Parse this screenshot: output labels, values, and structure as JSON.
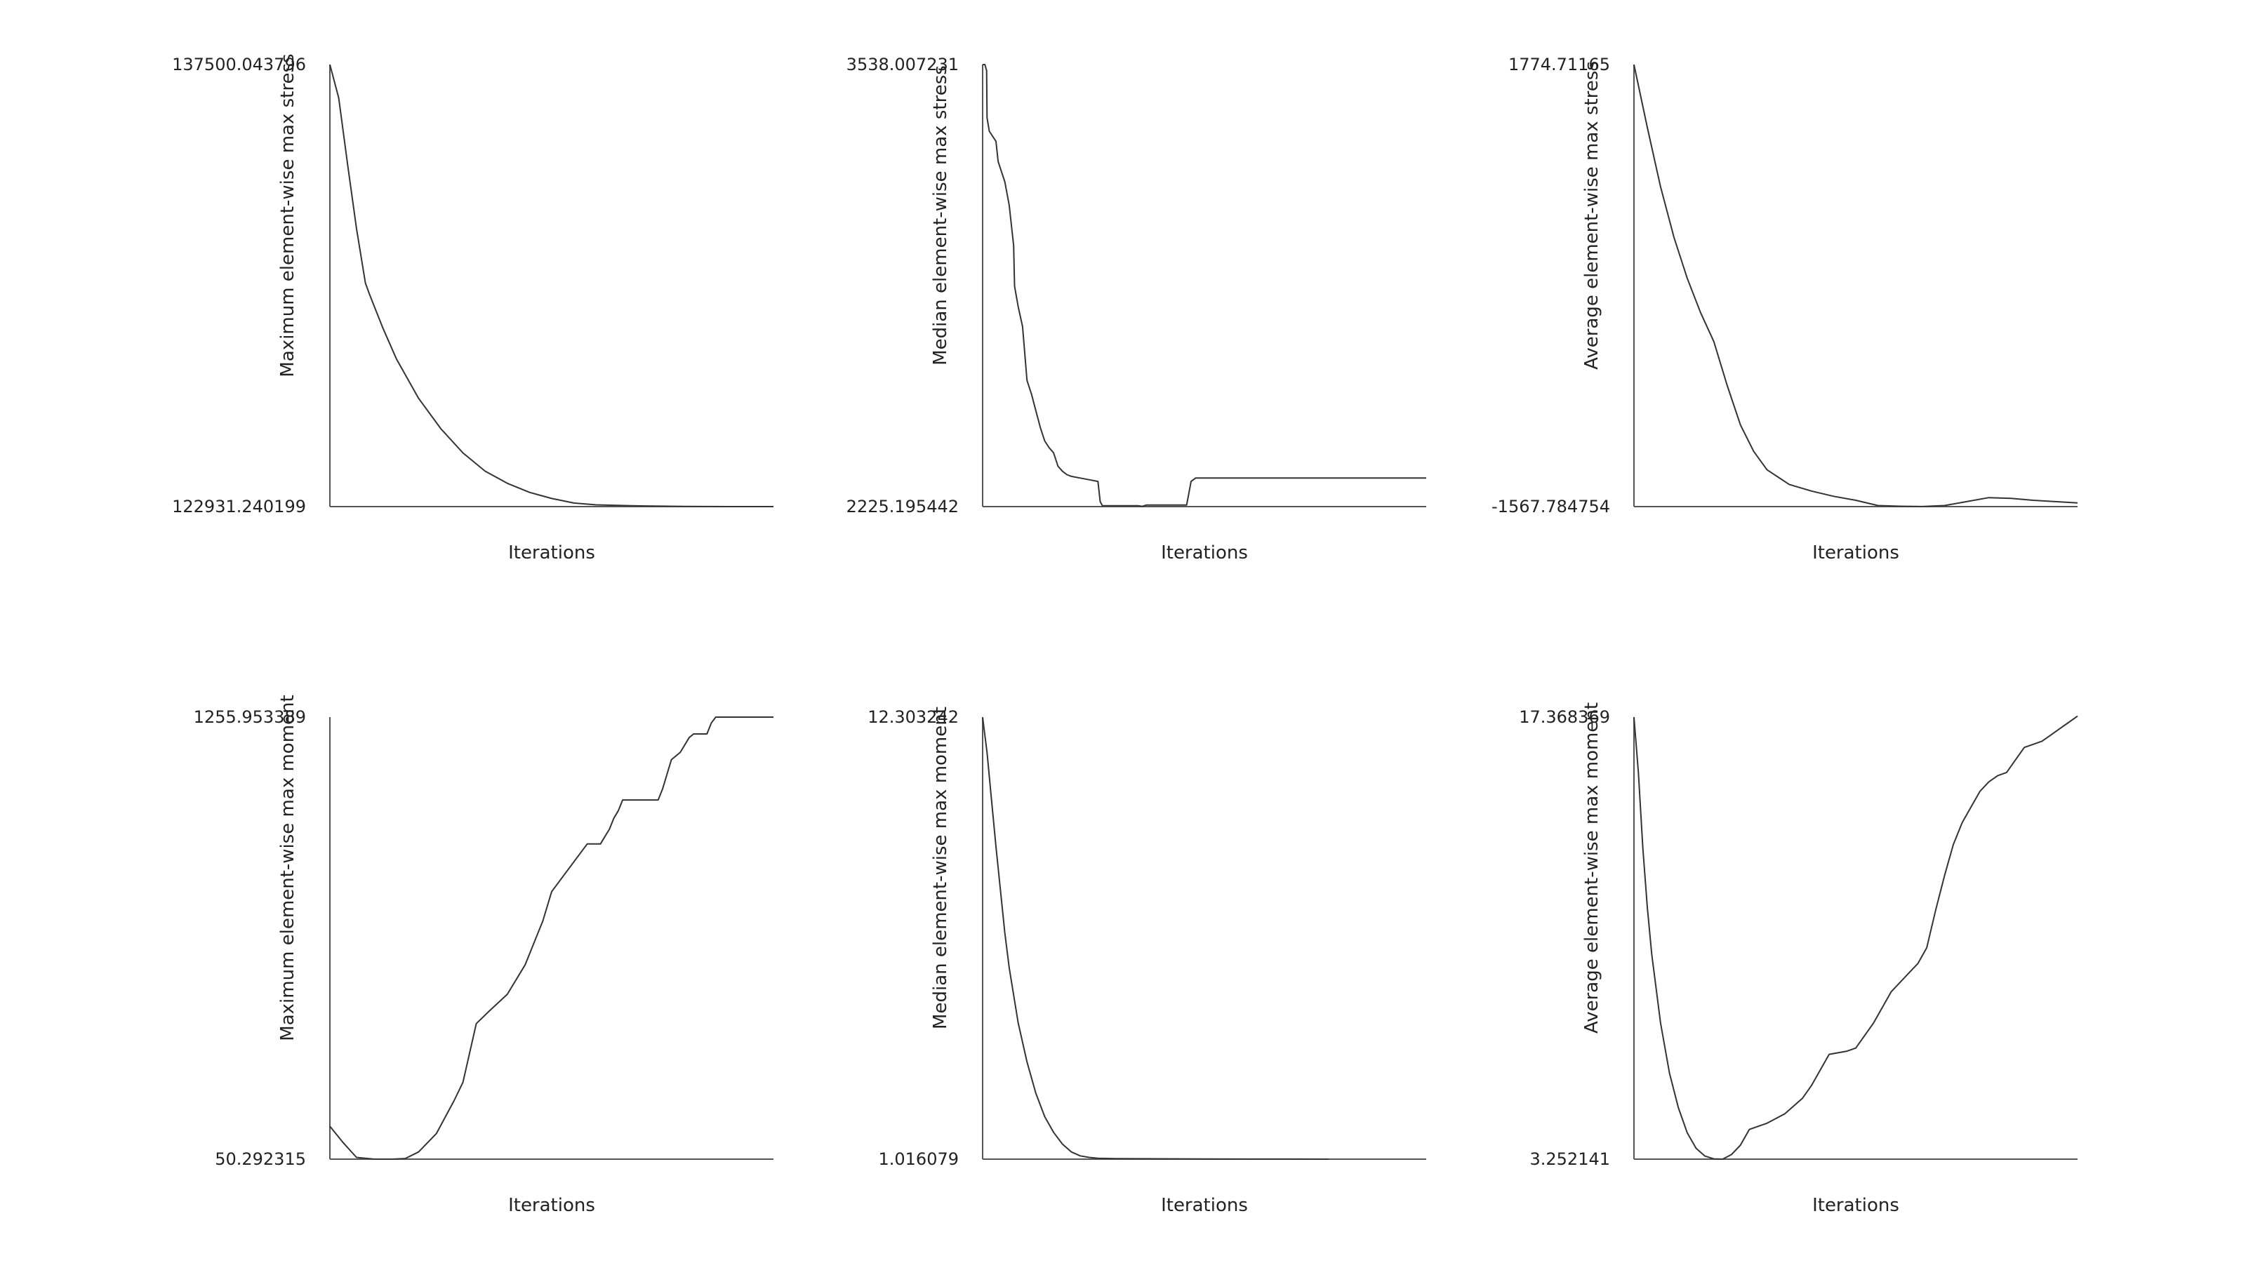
{
  "chart_data": [
    {
      "type": "line",
      "xlabel": "Iterations",
      "ylabel": "Maximum element-wise max stress",
      "ymax_label": "137500.043796",
      "ymin_label": "122931.240199",
      "ylim": [
        122931.240199,
        137500.043796
      ],
      "xlim": [
        0,
        100
      ],
      "x": [
        0,
        2,
        4,
        6,
        8,
        9,
        12,
        15,
        20,
        25,
        30,
        35,
        40,
        45,
        50,
        55,
        60,
        65,
        70,
        75,
        80,
        85,
        90,
        95,
        100
      ],
      "y": [
        137500.04,
        136400,
        134200,
        132100,
        130300,
        129900,
        128800,
        127800,
        126500,
        125500,
        124700,
        124100,
        123700,
        123400,
        123200,
        123050,
        122990,
        122970,
        122955,
        122945,
        122938,
        122934,
        122932,
        122931.5,
        122931.24
      ]
    },
    {
      "type": "line",
      "xlabel": "Iterations",
      "ylabel": "Median element-wise max stress",
      "ymax_label": "3538.007231",
      "ymin_label": "2225.195442",
      "ylim": [
        2225.195442,
        3538.007231
      ],
      "xlim": [
        0,
        100
      ],
      "x": [
        0,
        0.5,
        0.9,
        1.0,
        1.5,
        3,
        3.5,
        5,
        6,
        7,
        7.2,
        8,
        8.5,
        9,
        10,
        11,
        12,
        13,
        14,
        15,
        16,
        17,
        18,
        19,
        20,
        22,
        24,
        26,
        26.5,
        27,
        35,
        36,
        37,
        46,
        47,
        48,
        100
      ],
      "y": [
        3538.0,
        3538.0,
        3520,
        3380,
        3340,
        3310,
        3250,
        3190,
        3120,
        3000,
        2880,
        2820,
        2790,
        2760,
        2600,
        2560,
        2510,
        2460,
        2420,
        2400,
        2385,
        2345,
        2330,
        2320,
        2315,
        2310,
        2305,
        2300,
        2240,
        2228,
        2228,
        2226,
        2230,
        2230,
        2300,
        2310,
        2310
      ]
    },
    {
      "type": "line",
      "xlabel": "Iterations",
      "ylabel": "Average element-wise max stress",
      "ymax_label": "1774.71165",
      "ymin_label": "-1567.784754",
      "ylim": [
        -1567.784754,
        1774.71165
      ],
      "xlim": [
        0,
        100
      ],
      "x": [
        0,
        3,
        6,
        9,
        12,
        15,
        18,
        21,
        24,
        27,
        30,
        35,
        40,
        45,
        50,
        55,
        60,
        65,
        70,
        75,
        80,
        85,
        90,
        95,
        100
      ],
      "y": [
        1774.71,
        1300,
        850,
        470,
        160,
        -100,
        -320,
        -650,
        -950,
        -1150,
        -1290,
        -1400,
        -1450,
        -1490,
        -1520,
        -1560,
        -1565,
        -1567,
        -1560,
        -1530,
        -1500,
        -1505,
        -1520,
        -1530,
        -1540
      ]
    },
    {
      "type": "line",
      "xlabel": "Iterations",
      "ylabel": "Maximum element-wise max moment",
      "ymax_label": "1255.953389",
      "ymin_label": "50.292315",
      "ylim": [
        50.292315,
        1255.953389
      ],
      "xlim": [
        0,
        100
      ],
      "x": [
        0,
        3,
        6,
        10,
        14,
        17,
        20,
        24,
        28,
        30,
        33,
        36,
        40,
        44,
        48,
        50,
        58,
        59,
        60,
        61,
        62,
        63,
        64,
        65,
        66,
        67,
        73,
        74,
        75,
        76,
        77,
        78,
        79,
        81,
        82,
        85,
        86,
        87,
        92,
        100
      ],
      "y": [
        140,
        95,
        55,
        50.3,
        50.3,
        52,
        70,
        120,
        210,
        260,
        420,
        455,
        500,
        580,
        700,
        780,
        910,
        910,
        910,
        910,
        930,
        950,
        980,
        1000,
        1030,
        1030,
        1030,
        1030,
        1060,
        1100,
        1140,
        1150,
        1160,
        1200,
        1210,
        1210,
        1240,
        1256,
        1256,
        1256
      ]
    },
    {
      "type": "line",
      "xlabel": "Iterations",
      "ylabel": "Median element-wise max moment",
      "ymax_label": "12.303242",
      "ymin_label": "1.016079",
      "ylim": [
        1.016079,
        12.303242
      ],
      "xlim": [
        0,
        100
      ],
      "x": [
        0,
        1,
        2,
        3,
        4,
        5,
        6,
        8,
        10,
        12,
        14,
        16,
        18,
        20,
        22,
        24,
        26,
        30,
        40,
        50,
        60,
        70,
        78
      ],
      "y": [
        12.3,
        11.4,
        10.2,
        9.0,
        7.9,
        6.8,
        5.9,
        4.5,
        3.5,
        2.7,
        2.1,
        1.7,
        1.4,
        1.2,
        1.1,
        1.06,
        1.04,
        1.03,
        1.025,
        1.02,
        1.018,
        1.017,
        1.016
      ]
    },
    {
      "type": "line",
      "xlabel": "Iterations",
      "ylabel": "Average element-wise max moment",
      "ymax_label": "17.368369",
      "ymin_label": "3.252141",
      "ylim": [
        3.252141,
        17.368369
      ],
      "xlim": [
        0,
        100
      ],
      "x": [
        0,
        1,
        2,
        3,
        4,
        6,
        8,
        10,
        12,
        14,
        16,
        18,
        20,
        22,
        24,
        26,
        28,
        30,
        34,
        38,
        40,
        44,
        48,
        50,
        54,
        58,
        60,
        62,
        64,
        66,
        68,
        70,
        72,
        74,
        76,
        78,
        80,
        82,
        84,
        86,
        88,
        90,
        92,
        94,
        96,
        98,
        100
      ],
      "y": [
        17.37,
        15.6,
        13.2,
        11.3,
        9.8,
        7.6,
        6.0,
        4.9,
        4.1,
        3.6,
        3.35,
        3.26,
        3.252,
        3.4,
        3.7,
        4.2,
        4.3,
        4.4,
        4.7,
        5.2,
        5.6,
        6.6,
        6.7,
        6.8,
        7.6,
        8.6,
        8.9,
        9.2,
        9.5,
        10.0,
        11.2,
        12.3,
        13.3,
        14.0,
        14.5,
        15.0,
        15.3,
        15.5,
        15.6,
        16.0,
        16.4,
        16.5,
        16.6,
        16.8,
        17.0,
        17.2,
        17.4
      ]
    }
  ]
}
